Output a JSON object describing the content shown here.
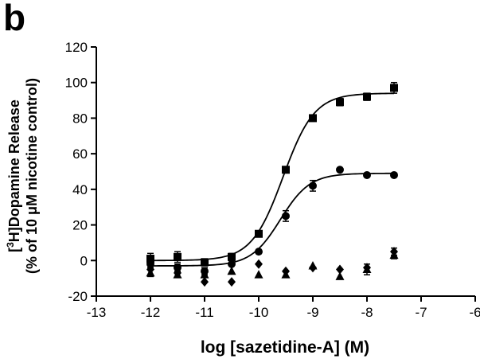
{
  "panel_label": "b",
  "chart_data": {
    "type": "scatter",
    "xlabel": "log [sazetidine-A] (M)",
    "ylabel_line1_sup": "3",
    "ylabel_line1_pre": "[",
    "ylabel_line1_post": "H]Dopamine Release",
    "ylabel_line2": "(% of 10 μM nicotine control)",
    "xlim": [
      -13,
      -6
    ],
    "ylim": [
      -20,
      120
    ],
    "xticks": [
      -13,
      -12,
      -11,
      -10,
      -9,
      -8,
      -7,
      -6
    ],
    "yticks": [
      -20,
      0,
      20,
      40,
      60,
      80,
      100,
      120
    ],
    "grid": false,
    "legend": "none",
    "series": [
      {
        "marker": "square",
        "x": [
          -12,
          -11.5,
          -11,
          -10.5,
          -10,
          -9.5,
          -9,
          -8.5,
          -8,
          -7.5
        ],
        "y": [
          1,
          2,
          -1,
          2,
          15,
          51,
          80,
          89,
          92,
          97
        ],
        "err": [
          3,
          3,
          2,
          2,
          0,
          0,
          0,
          2,
          2,
          3
        ],
        "fit": {
          "bottom": 0,
          "top": 94,
          "logEC50": -9.55,
          "hill": 1.5
        }
      },
      {
        "marker": "circle",
        "x": [
          -12,
          -11.5,
          -11,
          -10.5,
          -10,
          -9.5,
          -9,
          -8.5,
          -8,
          -7.5
        ],
        "y": [
          -2,
          -4,
          -6,
          -2,
          5,
          25,
          42,
          51,
          48,
          48
        ],
        "err": [
          2,
          2,
          2,
          0,
          0,
          3,
          3,
          0,
          0,
          0
        ],
        "fit": {
          "bottom": -3,
          "top": 49,
          "logEC50": -9.6,
          "hill": 1.6
        }
      },
      {
        "marker": "triangle",
        "x": [
          -12,
          -11.5,
          -11,
          -10.5,
          -10,
          -9.5,
          -9,
          -8.5,
          -8,
          -7.5
        ],
        "y": [
          -7,
          -8,
          -8,
          -6,
          -8,
          -8,
          -3,
          -9,
          -5,
          3
        ],
        "err": [
          2,
          0,
          0,
          0,
          0,
          0,
          0,
          0,
          3,
          2
        ]
      },
      {
        "marker": "diamond",
        "x": [
          -12,
          -11.5,
          -11,
          -10.5,
          -10,
          -9.5,
          -9,
          -8.5,
          -8,
          -7.5
        ],
        "y": [
          -5,
          -7,
          -12,
          -12,
          -2,
          -6,
          -4,
          -5,
          -4,
          5
        ],
        "err": [
          0,
          0,
          0,
          0,
          0,
          0,
          0,
          0,
          0,
          2
        ]
      }
    ]
  }
}
